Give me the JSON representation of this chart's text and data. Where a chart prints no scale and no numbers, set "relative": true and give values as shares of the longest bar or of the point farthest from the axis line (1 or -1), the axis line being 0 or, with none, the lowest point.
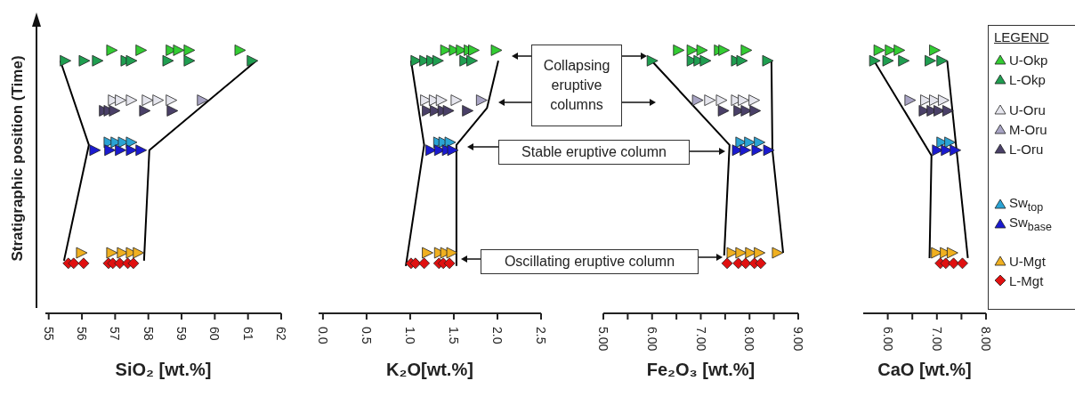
{
  "chart_data": [
    {
      "type": "scatter",
      "ylabel": "Stratigraphic position (Time)",
      "xlabel": "SiO₂ [wt.%]",
      "relative": true,
      "tick_labels": "x",
      "xlim": [
        54.9,
        62
      ],
      "xticks": [
        55,
        56,
        57,
        58,
        59,
        60,
        61,
        62
      ],
      "series": [
        {
          "color": "#33cc33",
          "marker": "triangle",
          "x": [
            56.88,
            57.76,
            58.67,
            58.89,
            59.21,
            60.74
          ],
          "values": [
            1,
            1,
            1,
            1,
            1,
            1
          ]
        },
        {
          "color": "#1f9e50",
          "marker": "triangle",
          "x": [
            55.48,
            56.05,
            56.45,
            57.31,
            57.47,
            58.57,
            59.21,
            61.11
          ],
          "values": [
            0.96,
            0.96,
            0.96,
            0.96,
            0.96,
            0.96,
            0.96,
            0.96
          ]
        },
        {
          "color": "#e6e6ee",
          "marker": "triangle",
          "x": [
            56.93,
            57.14,
            57.47,
            57.95,
            58.27,
            58.67
          ],
          "values": [
            0.81,
            0.81,
            0.81,
            0.81,
            0.81,
            0.81
          ]
        },
        {
          "color": "#a8a4c4",
          "marker": "triangle",
          "x": [
            59.61
          ],
          "values": [
            0.81
          ]
        },
        {
          "color": "#4a4068",
          "marker": "triangle",
          "x": [
            56.66,
            56.8,
            56.96,
            57.87,
            58.7
          ],
          "values": [
            0.77,
            0.77,
            0.77,
            0.77,
            0.77
          ]
        },
        {
          "color": "#2aa3d4",
          "marker": "triangle",
          "x": [
            56.8,
            57.01,
            57.23,
            57.47
          ],
          "values": [
            0.65,
            0.65,
            0.65,
            0.65
          ]
        },
        {
          "color": "#1a1ad0",
          "marker": "triangle",
          "x": [
            56.37,
            56.82,
            57.14,
            57.47,
            57.76
          ],
          "values": [
            0.62,
            0.62,
            0.62,
            0.62,
            0.62
          ]
        },
        {
          "color": "#f0b020",
          "marker": "triangle",
          "x": [
            55.97,
            56.88,
            57.2,
            57.47,
            57.68
          ],
          "values": [
            0.23,
            0.23,
            0.23,
            0.23,
            0.23
          ]
        },
        {
          "color": "#e01010",
          "marker": "diamond",
          "x": [
            55.59,
            55.75,
            56.05,
            56.8,
            56.93,
            57.14,
            57.38,
            57.55
          ],
          "values": [
            0.19,
            0.19,
            0.19,
            0.19,
            0.19,
            0.19,
            0.19,
            0.19
          ]
        },
        {
          "type": "line",
          "color": "#000000",
          "marker": "none",
          "x": [
            55.35,
            56.21,
            55.46
          ],
          "values": [
            0.96,
            0.64,
            0.2
          ]
        },
        {
          "type": "line",
          "color": "#000000",
          "marker": "none",
          "x": [
            61.25,
            58.03,
            57.87
          ],
          "values": [
            0.96,
            0.62,
            0.2
          ]
        }
      ]
    },
    {
      "type": "scatter",
      "xlabel": "K₂O[wt.%]",
      "relative": true,
      "tick_labels": "x",
      "xlim": [
        -0.05,
        2.5
      ],
      "xticks": [
        {
          "value": 0,
          "label": "0.0"
        },
        {
          "value": 0.5,
          "label": "0.5"
        },
        {
          "value": 1,
          "label": "1.0"
        },
        {
          "value": 1.5,
          "label": "1.5"
        },
        {
          "value": 2,
          "label": "2.0"
        },
        {
          "value": 2.5,
          "label": "2.5"
        }
      ],
      "annotations": [
        "Collapsing eruptive columns",
        "Stable eruptive column",
        "Oscillating eruptive column"
      ],
      "series": [
        {
          "color": "#33cc33",
          "marker": "triangle",
          "x": [
            1.4,
            1.5,
            1.58,
            1.67,
            1.72,
            1.98
          ],
          "values": [
            1,
            1,
            1,
            1,
            1,
            1
          ]
        },
        {
          "color": "#1f9e50",
          "marker": "triangle",
          "x": [
            1.06,
            1.16,
            1.24,
            1.31,
            1.62,
            1.7
          ],
          "values": [
            0.96,
            0.96,
            0.96,
            0.96,
            0.96,
            0.96
          ]
        },
        {
          "color": "#e6e6ee",
          "marker": "triangle",
          "x": [
            1.17,
            1.27,
            1.35,
            1.52
          ],
          "values": [
            0.81,
            0.81,
            0.81,
            0.81
          ]
        },
        {
          "color": "#a8a4c4",
          "marker": "triangle",
          "x": [
            1.81
          ],
          "values": [
            0.81
          ]
        },
        {
          "color": "#4a4068",
          "marker": "triangle",
          "x": [
            1.19,
            1.28,
            1.37,
            1.43,
            1.65
          ],
          "values": [
            0.77,
            0.77,
            0.77,
            0.77,
            0.77
          ]
        },
        {
          "color": "#2aa3d4",
          "marker": "triangle",
          "x": [
            1.32,
            1.38,
            1.45
          ],
          "values": [
            0.65,
            0.65,
            0.65
          ]
        },
        {
          "color": "#1a1ad0",
          "marker": "triangle",
          "x": [
            1.23,
            1.33,
            1.42,
            1.48
          ],
          "values": [
            0.62,
            0.62,
            0.62,
            0.62
          ]
        },
        {
          "color": "#f0b020",
          "marker": "triangle",
          "x": [
            1.19,
            1.33,
            1.4,
            1.47
          ],
          "values": [
            0.23,
            0.23,
            0.23,
            0.23
          ]
        },
        {
          "color": "#e01010",
          "marker": "diamond",
          "x": [
            1.01,
            1.06,
            1.16,
            1.33,
            1.38,
            1.45
          ],
          "values": [
            0.19,
            0.19,
            0.19,
            0.19,
            0.19,
            0.19
          ]
        },
        {
          "type": "line",
          "color": "#000000",
          "marker": "none",
          "x": [
            1.01,
            1.16,
            0.95
          ],
          "values": [
            0.96,
            0.64,
            0.18
          ]
        },
        {
          "type": "line",
          "color": "#000000",
          "marker": "none",
          "x": [
            2.01,
            1.88,
            1.53,
            1.53
          ],
          "values": [
            0.96,
            0.78,
            0.64,
            0.18
          ]
        }
      ]
    },
    {
      "type": "scatter",
      "xlabel": "Fe₂O₃ [wt.%]",
      "relative": true,
      "tick_labels": "x",
      "xlim": [
        5,
        9
      ],
      "xticks": [
        {
          "value": 5,
          "label": "5.00"
        },
        {
          "value": 5.5,
          "label": null
        },
        {
          "value": 6,
          "label": "6.00"
        },
        {
          "value": 6.5,
          "label": null
        },
        {
          "value": 7,
          "label": "7.00"
        },
        {
          "value": 7.5,
          "label": null
        },
        {
          "value": 8,
          "label": "8.00"
        },
        {
          "value": 8.5,
          "label": null
        },
        {
          "value": 9,
          "label": "9.00"
        }
      ],
      "series": [
        {
          "color": "#33cc33",
          "marker": "triangle",
          "x": [
            6.53,
            6.81,
            7.01,
            7.37,
            7.46,
            7.92
          ],
          "values": [
            1,
            1,
            1,
            1,
            1,
            1
          ]
        },
        {
          "color": "#1f9e50",
          "marker": "triangle",
          "x": [
            5.99,
            6.81,
            6.95,
            7.08,
            7.72,
            7.83,
            8.36
          ],
          "values": [
            0.96,
            0.96,
            0.96,
            0.96,
            0.96,
            0.96,
            0.96
          ]
        },
        {
          "color": "#e6e6ee",
          "marker": "triangle",
          "x": [
            7.17,
            7.41,
            7.72,
            7.86,
            8.08
          ],
          "values": [
            0.81,
            0.81,
            0.81,
            0.81,
            0.81
          ]
        },
        {
          "color": "#a8a4c4",
          "marker": "triangle",
          "x": [
            6.92
          ],
          "values": [
            0.81
          ]
        },
        {
          "color": "#4a4068",
          "marker": "triangle",
          "x": [
            7.45,
            7.77,
            7.92,
            8.1
          ],
          "values": [
            0.77,
            0.77,
            0.77,
            0.77
          ]
        },
        {
          "color": "#2aa3d4",
          "marker": "triangle",
          "x": [
            7.81,
            7.99,
            8.19
          ],
          "values": [
            0.65,
            0.65,
            0.65
          ]
        },
        {
          "color": "#1a1ad0",
          "marker": "triangle",
          "x": [
            7.74,
            7.9,
            8.14,
            8.38
          ],
          "values": [
            0.62,
            0.62,
            0.62,
            0.62
          ]
        },
        {
          "color": "#f0b020",
          "marker": "triangle",
          "x": [
            7.63,
            7.81,
            8.01,
            8.19,
            8.56
          ],
          "values": [
            0.23,
            0.23,
            0.23,
            0.23,
            0.23
          ]
        },
        {
          "color": "#e01010",
          "marker": "diamond",
          "x": [
            7.54,
            7.77,
            7.92,
            8.1,
            8.23
          ],
          "values": [
            0.19,
            0.19,
            0.19,
            0.19,
            0.19
          ]
        },
        {
          "type": "line",
          "color": "#000000",
          "marker": "none",
          "x": [
            5.99,
            7.59,
            7.48
          ],
          "values": [
            0.96,
            0.64,
            0.22
          ]
        },
        {
          "type": "line",
          "color": "#000000",
          "marker": "none",
          "x": [
            8.45,
            8.47,
            8.69
          ],
          "values": [
            0.96,
            0.62,
            0.23
          ]
        }
      ]
    },
    {
      "type": "scatter",
      "xlabel": "CaO [wt.%]",
      "relative": true,
      "tick_labels": "x",
      "xlim": [
        5.5,
        8
      ],
      "xticks": [
        {
          "value": 6,
          "label": "6.00"
        },
        {
          "value": 6.5,
          "label": null
        },
        {
          "value": 7,
          "label": "7.00"
        },
        {
          "value": 7.5,
          "label": null
        },
        {
          "value": 8,
          "label": "8.00"
        }
      ],
      "legend": "right",
      "legend_title": "LEGEND",
      "series": [
        {
          "name": "U-Okp",
          "color": "#33cc33",
          "marker": "triangle",
          "x": [
            5.81,
            6.04,
            6.22,
            6.94
          ],
          "values": [
            1,
            1,
            1,
            1
          ]
        },
        {
          "name": "L-Okp",
          "color": "#1f9e50",
          "marker": "triangle",
          "x": [
            5.72,
            5.99,
            6.31,
            6.85,
            7.09
          ],
          "values": [
            0.96,
            0.96,
            0.96,
            0.96,
            0.96
          ]
        },
        {
          "name": "U-Oru",
          "color": "#e6e6ee",
          "marker": "triangle",
          "x": [
            6.76,
            6.94,
            7.12
          ],
          "values": [
            0.81,
            0.81,
            0.81
          ]
        },
        {
          "name": "M-Oru",
          "color": "#a8a4c4",
          "marker": "triangle",
          "x": [
            6.44
          ],
          "values": [
            0.81
          ]
        },
        {
          "name": "L-Oru",
          "color": "#4a4068",
          "marker": "triangle",
          "x": [
            6.73,
            6.89,
            7.03,
            7.21
          ],
          "values": [
            0.77,
            0.77,
            0.77,
            0.77
          ]
        },
        {
          "name": "Sw$_{top}$",
          "color": "#2aa3d4",
          "marker": "triangle",
          "x": [
            7.09,
            7.25
          ],
          "values": [
            0.65,
            0.65
          ]
        },
        {
          "name": "Sw$_{base}$",
          "color": "#1a1ad0",
          "marker": "triangle",
          "x": [
            7,
            7.18,
            7.36
          ],
          "values": [
            0.62,
            0.62,
            0.62
          ]
        },
        {
          "name": "U-Mgt",
          "color": "#f0b020",
          "marker": "triangle",
          "x": [
            6.98,
            7.16,
            7.3
          ],
          "values": [
            0.23,
            0.23,
            0.23
          ]
        },
        {
          "name": "L-Mgt",
          "color": "#e01010",
          "marker": "diamond",
          "x": [
            7.07,
            7.18,
            7.34,
            7.52
          ],
          "values": [
            0.19,
            0.19,
            0.19,
            0.19
          ]
        },
        {
          "type": "line",
          "color": "#000000",
          "marker": "none",
          "x": [
            5.72,
            6.89,
            6.85
          ],
          "values": [
            0.96,
            0.6,
            0.21
          ]
        },
        {
          "type": "line",
          "color": "#000000",
          "marker": "none",
          "x": [
            7.21,
            7.63
          ],
          "values": [
            0.96,
            0.21
          ]
        }
      ]
    }
  ]
}
